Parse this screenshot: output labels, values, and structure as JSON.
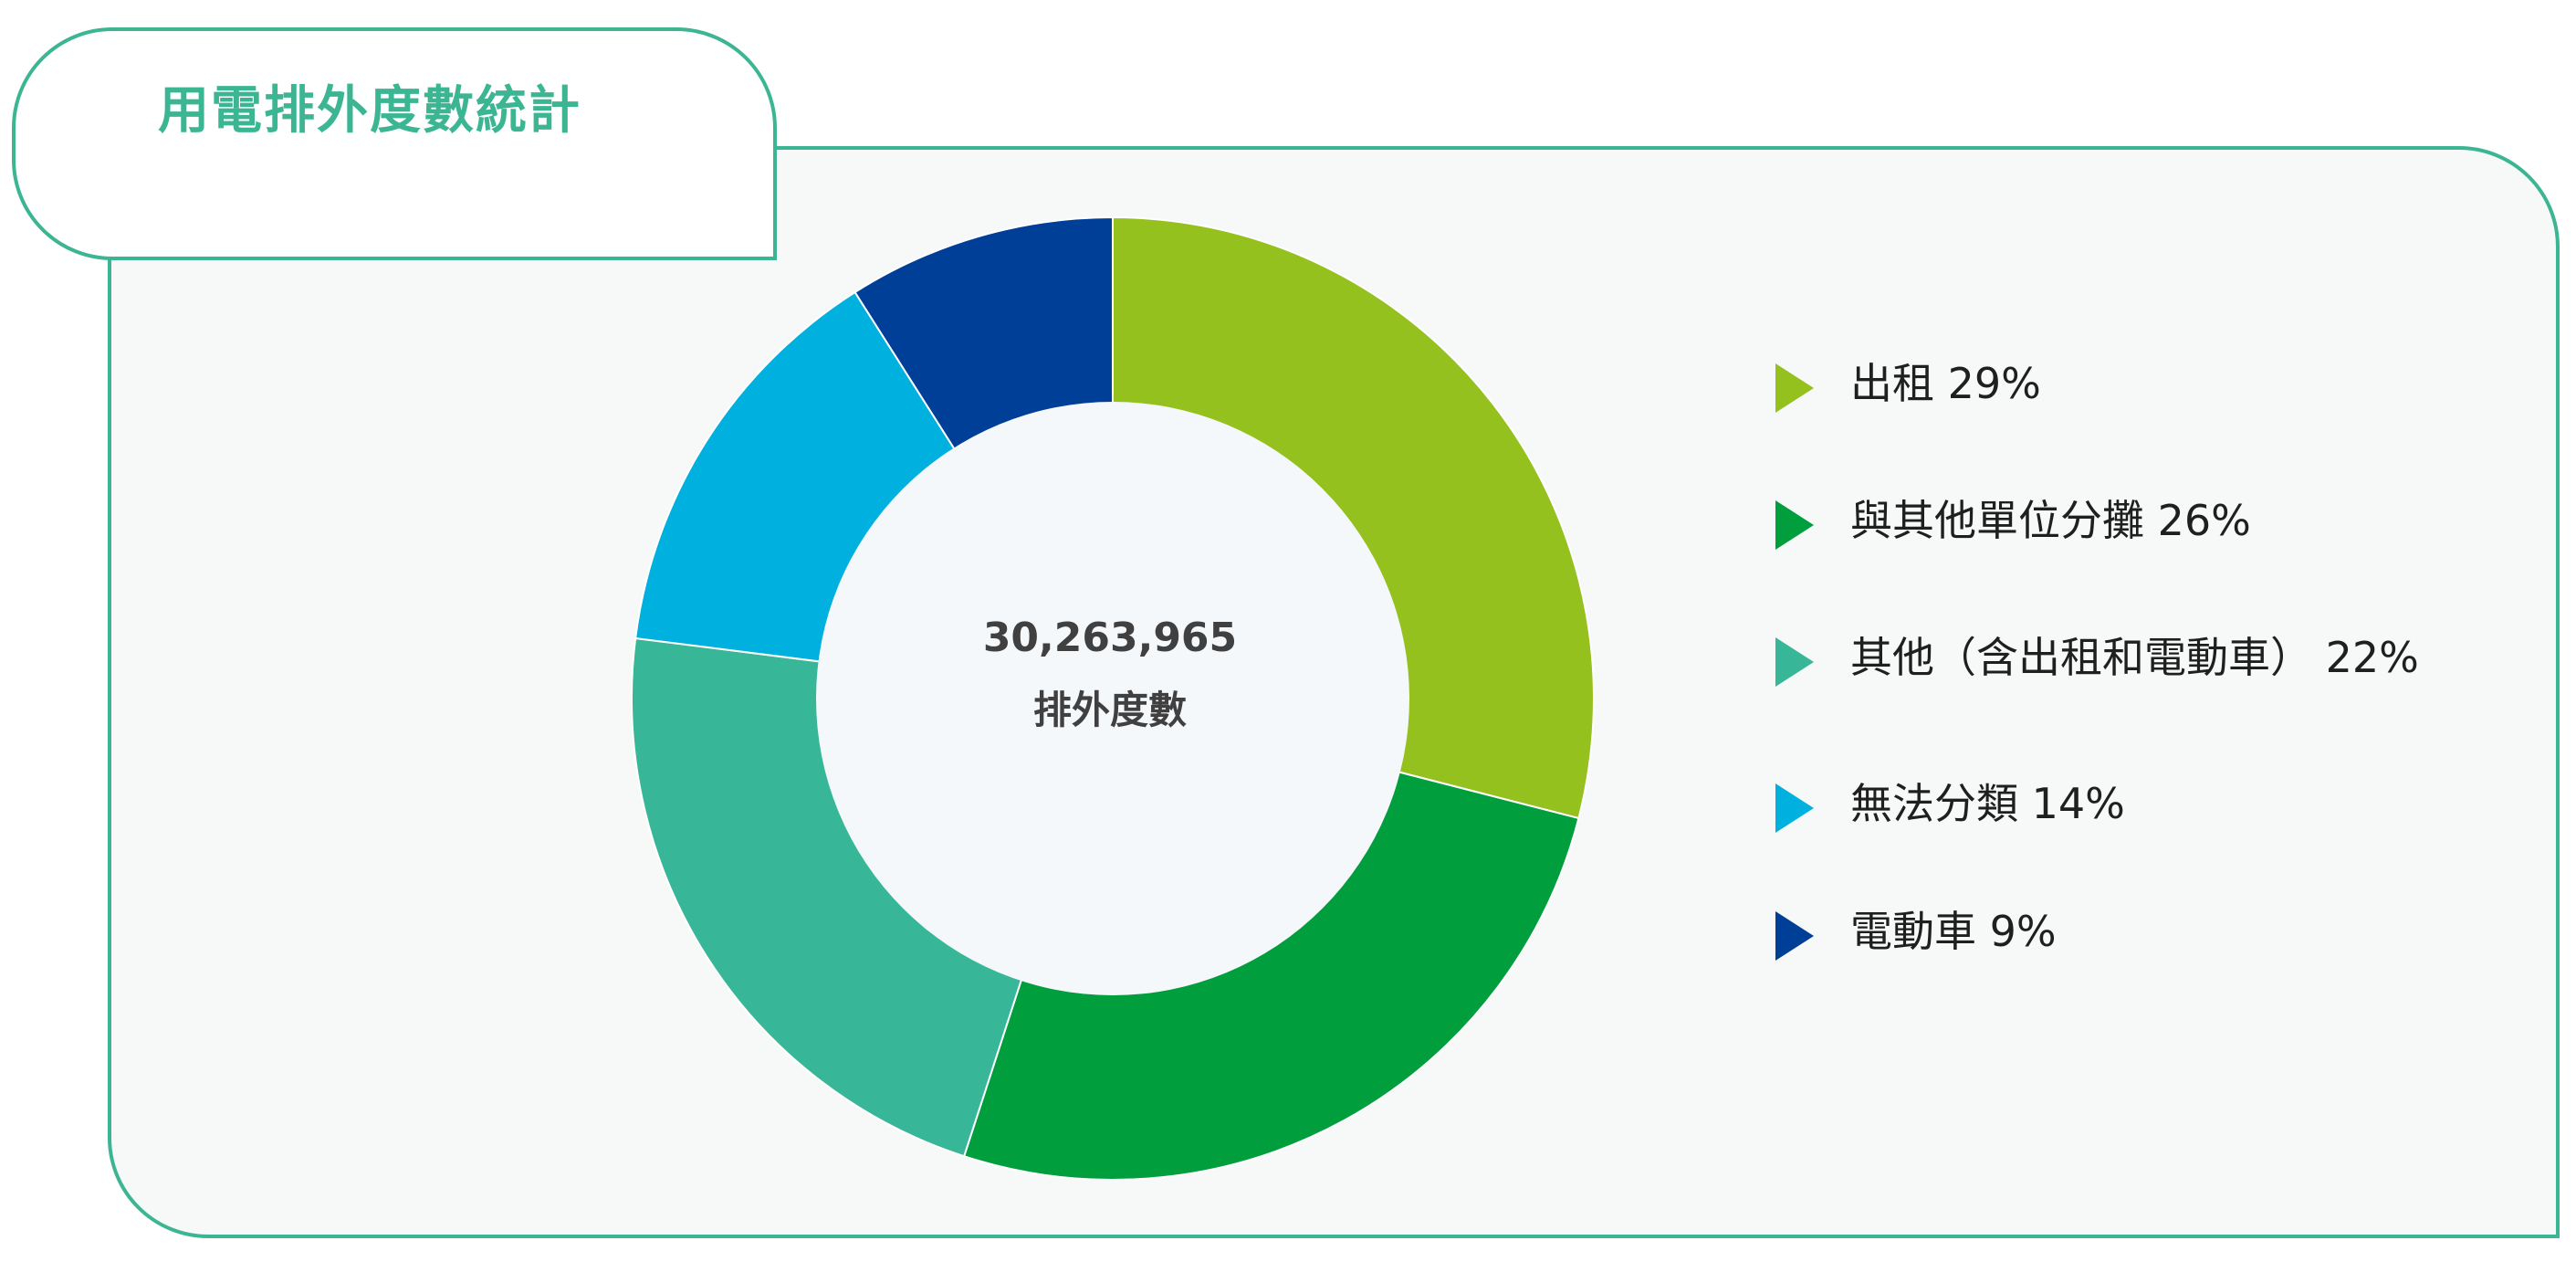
{
  "page": {
    "title": "用電排外度數統計"
  },
  "center": {
    "value": "30,263,965",
    "label": "排外度數"
  },
  "colors": {
    "accent": "#3cb593",
    "panel_bg": "#f6f9f8",
    "hole_bg": "#f5f8fb"
  },
  "chart_data": {
    "type": "pie",
    "style": "donut",
    "title": "用電排外度數統計",
    "unit": "%",
    "legend_position": "right",
    "slices": [
      {
        "label": "出租",
        "value": 29,
        "value_text": "29%",
        "color": "#95c11f",
        "icon": "triangle-right-icon"
      },
      {
        "label": "與其他單位分攤",
        "value": 26,
        "value_text": "26%",
        "color": "#009e3d",
        "icon": "triangle-right-icon"
      },
      {
        "label": "其他（含出租和電動車）",
        "value": 22,
        "value_text": "22%",
        "color": "#37b797",
        "icon": "triangle-right-icon"
      },
      {
        "label": "無法分類",
        "value": 14,
        "value_text": "14%",
        "color": "#00b0de",
        "icon": "triangle-right-icon"
      },
      {
        "label": "電動車",
        "value": 9,
        "value_text": "9%",
        "color": "#003f98",
        "icon": "triangle-right-icon"
      }
    ]
  }
}
